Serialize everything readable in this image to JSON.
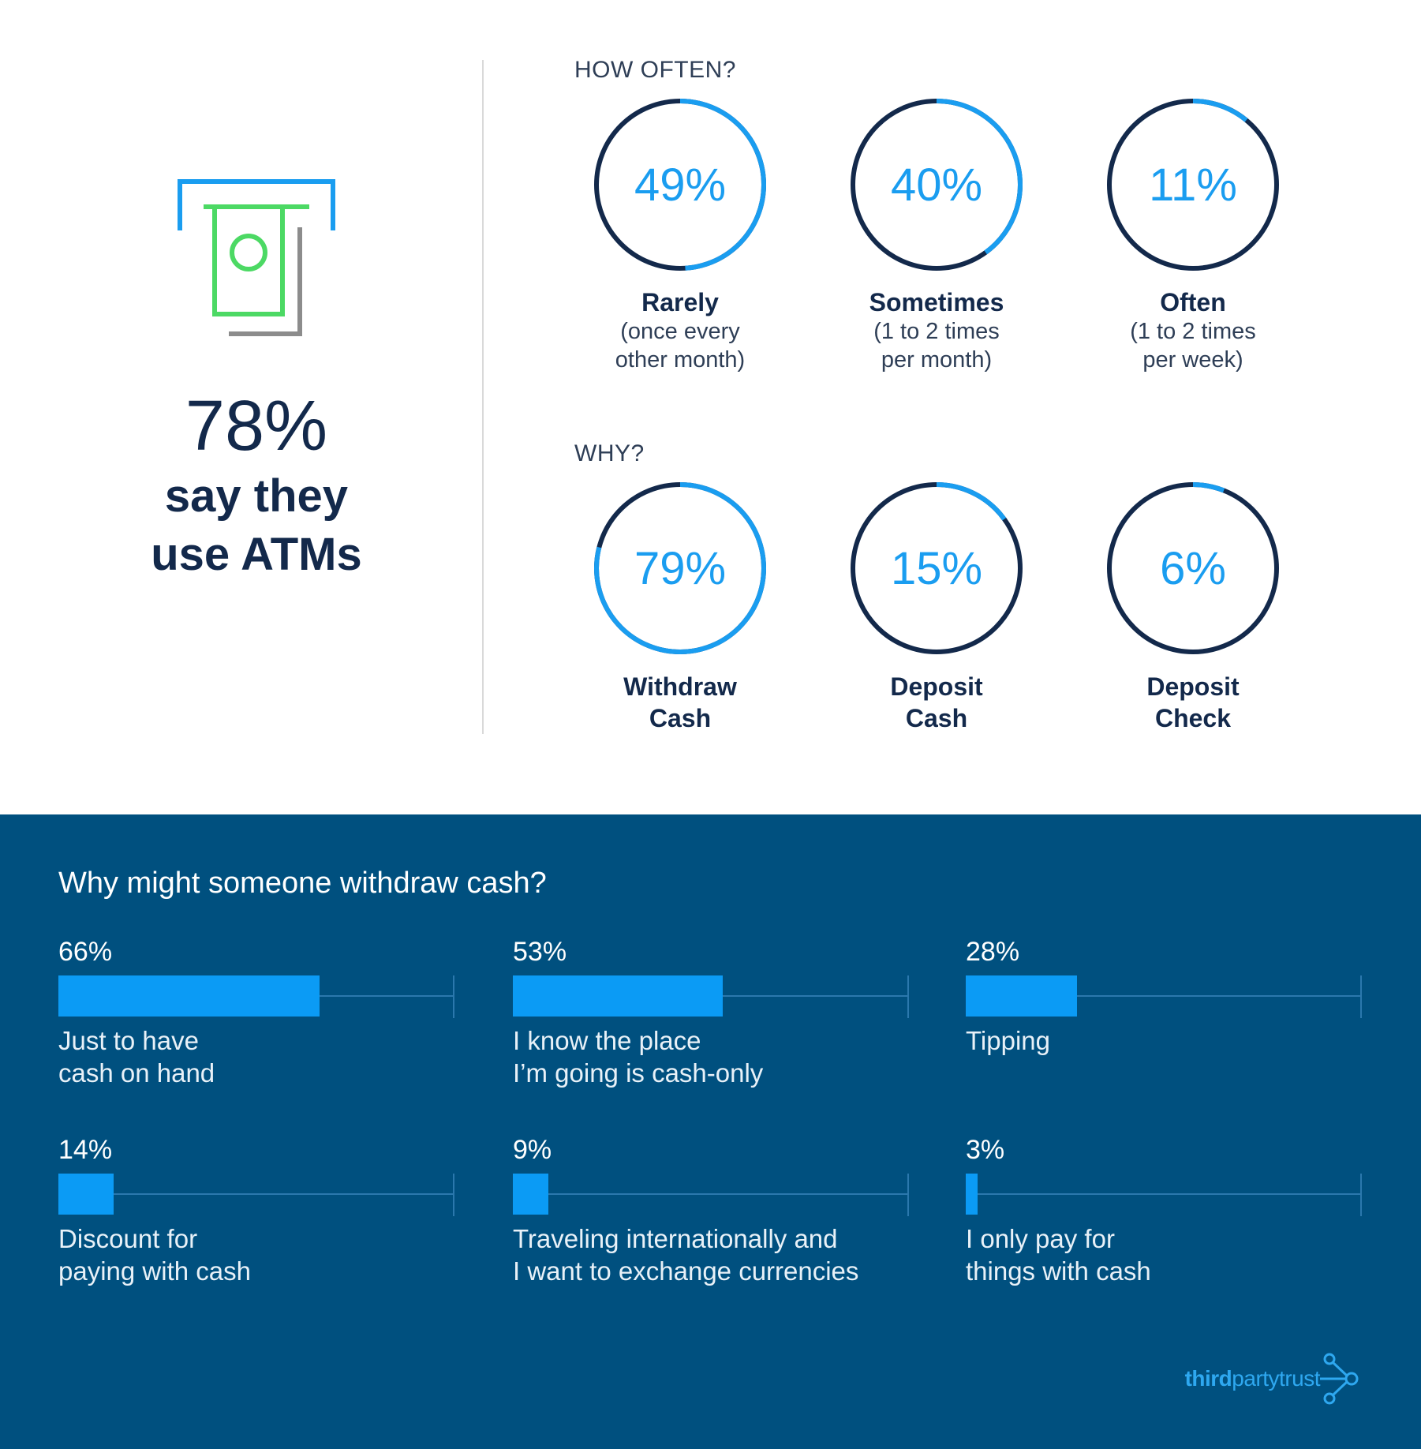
{
  "colors": {
    "dark_navy": "#13294b",
    "accent_blue": "#1a9df0",
    "bar_blue": "#0b9bf5",
    "bottom_bg": "#00507f",
    "icon_green": "#4cd964",
    "icon_gray": "#8c8c8c"
  },
  "headline": {
    "percent": "78%",
    "text": "say they\nuse ATMs"
  },
  "how_often": {
    "label": "HOW OFTEN?"
  },
  "why": {
    "label": "WHY?"
  },
  "bottom": {
    "title": "Why might someone withdraw cash?"
  },
  "logo": {
    "bold": "third",
    "regular": "partytrust"
  },
  "chart_data": [
    {
      "type": "pie",
      "title": "HOW OFTEN?",
      "categories": [
        "Rarely",
        "Sometimes",
        "Often"
      ],
      "subtitles": [
        "(once every\nother month)",
        "(1 to 2 times\nper month)",
        "(1 to 2 times\nper week)"
      ],
      "values": [
        49,
        40,
        11
      ],
      "labels": [
        "49%",
        "40%",
        "11%"
      ]
    },
    {
      "type": "pie",
      "title": "WHY?",
      "categories": [
        "Withdraw\nCash",
        "Deposit\nCash",
        "Deposit\nCheck"
      ],
      "values": [
        79,
        15,
        6
      ],
      "labels": [
        "79%",
        "15%",
        "6%"
      ]
    },
    {
      "type": "bar",
      "title": "Why might someone withdraw cash?",
      "categories": [
        "Just to have\ncash on hand",
        "I know the place\nI’m going is cash-only",
        "Tipping",
        "Discount for\npaying with cash",
        "Traveling internationally and\nI want to exchange currencies",
        "I only pay for\nthings with cash"
      ],
      "values": [
        66,
        53,
        28,
        14,
        9,
        3
      ],
      "labels": [
        "66%",
        "53%",
        "28%",
        "14%",
        "9%",
        "3%"
      ],
      "ylim": [
        0,
        100
      ]
    }
  ]
}
